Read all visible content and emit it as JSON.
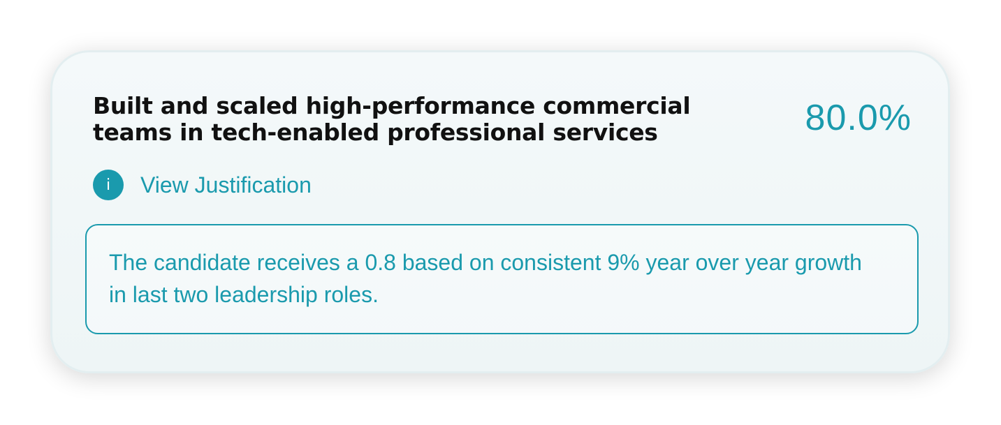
{
  "criterion": {
    "title": "Built and scaled high-performance commercial teams in tech-enabled professional services",
    "score": "80.0%"
  },
  "justification": {
    "toggle_label": "View Justification",
    "icon": "info-icon",
    "icon_glyph": "i",
    "text": "The candidate receives a 0.8 based on consistent 9% year over year growth in last two leadership roles."
  },
  "colors": {
    "accent": "#1a9aad",
    "title_text": "#111111",
    "card_background": "#f4f9fa"
  }
}
